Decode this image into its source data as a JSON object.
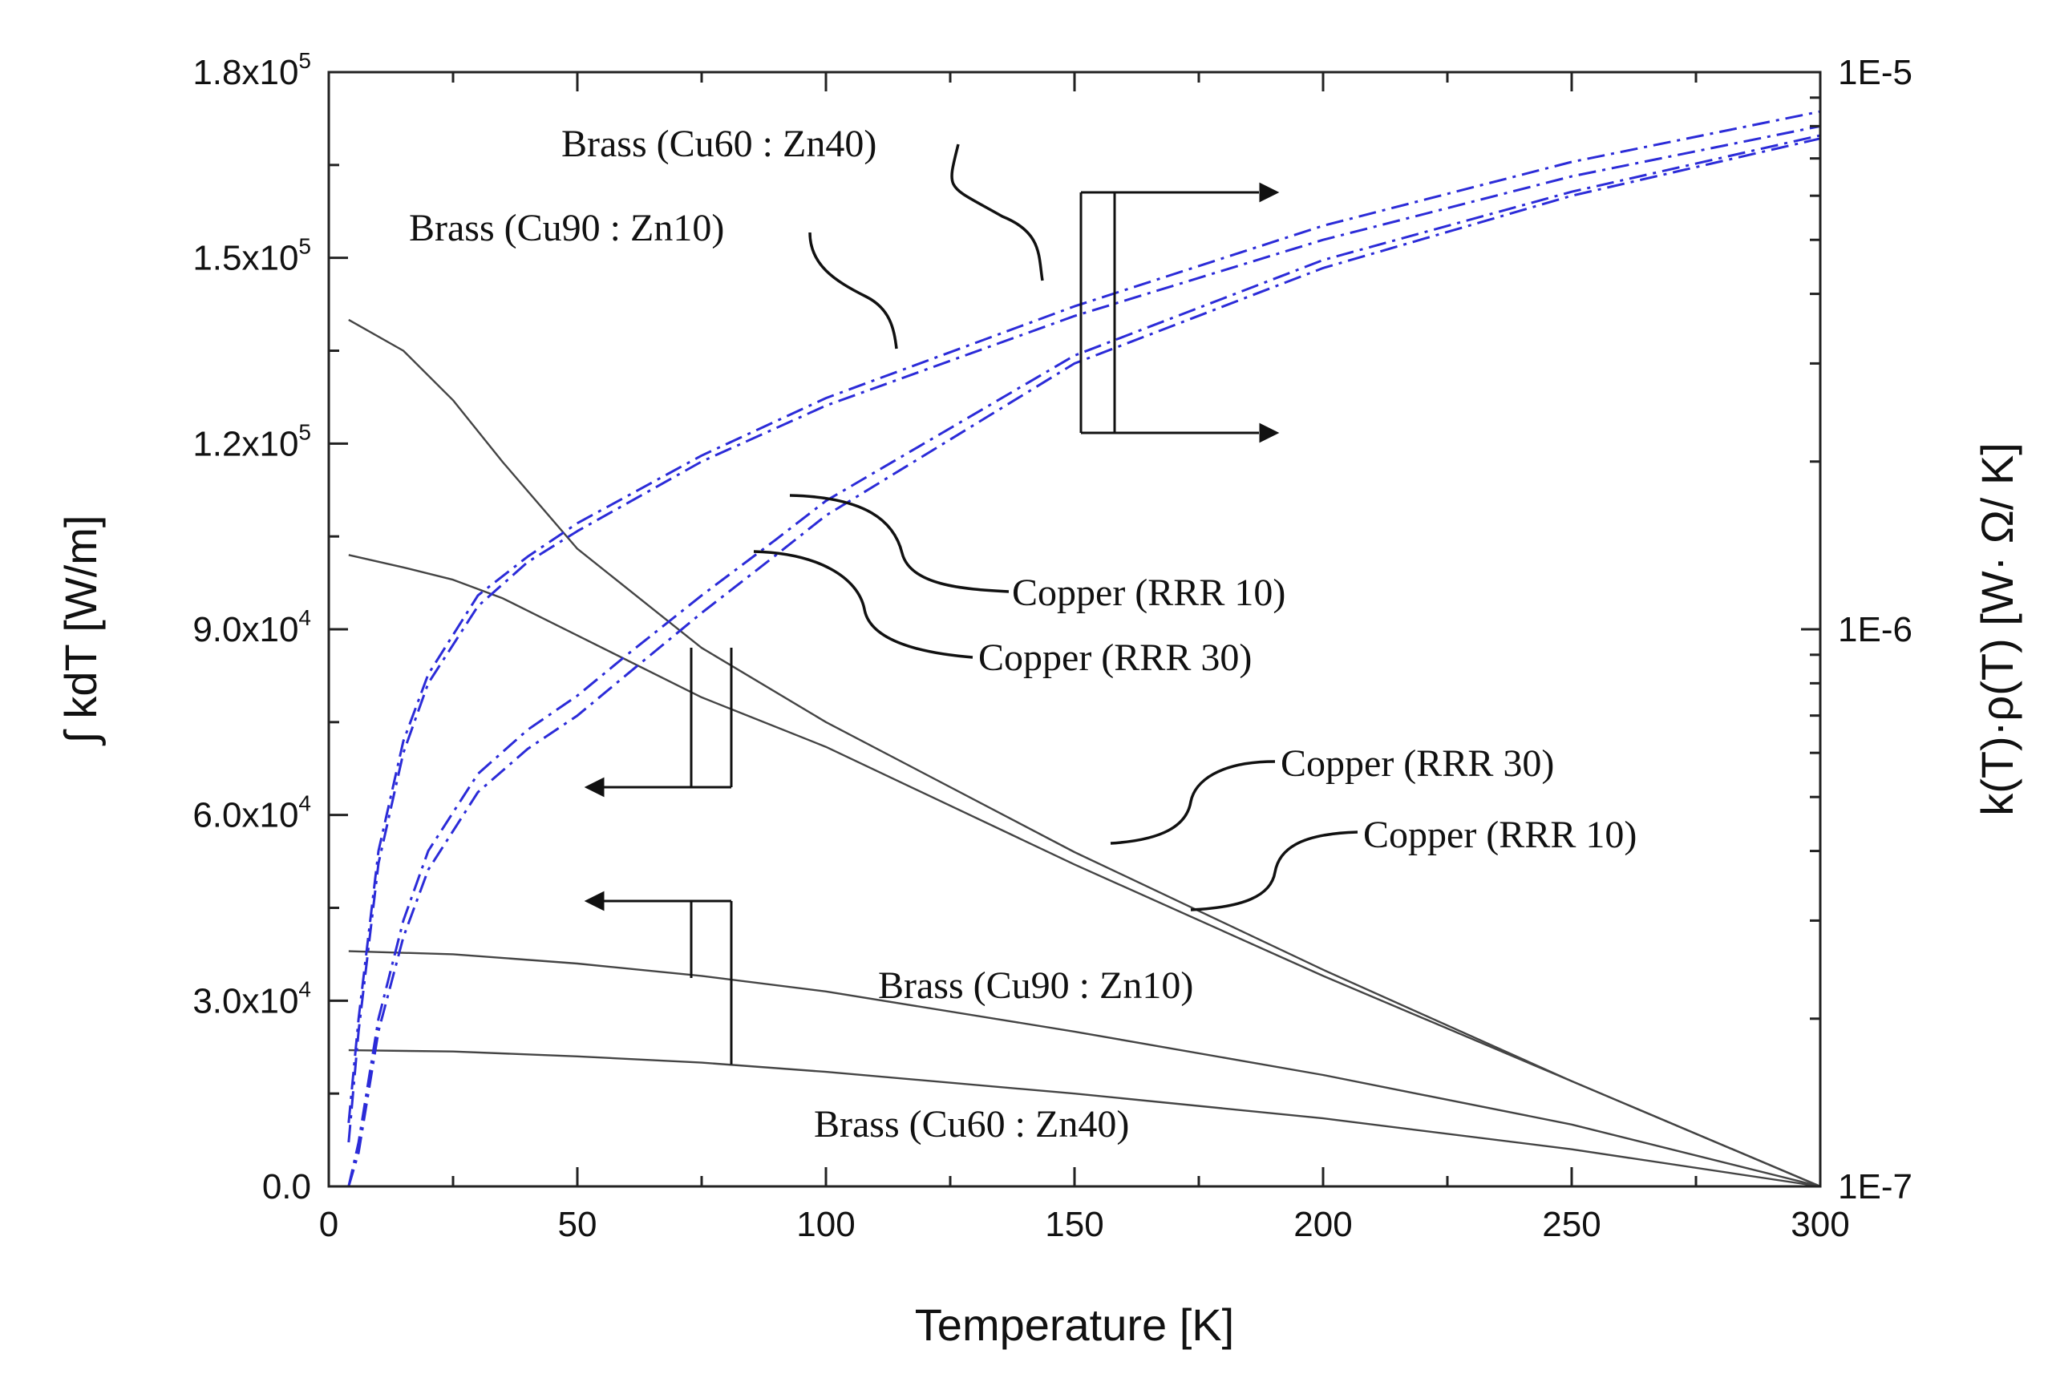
{
  "chart_data": {
    "type": "line",
    "xlabel": "Temperature [K]",
    "ylabel_left": "∫ kdT [W/m]",
    "ylabel_right": "k(T)·ρ(T) [W· Ω/ K]",
    "xlim": [
      0,
      300
    ],
    "ylim_left": [
      0,
      180000
    ],
    "ylim_right": [
      1e-07,
      1e-05
    ],
    "right_scale": "log",
    "x_ticks": [
      0,
      50,
      100,
      150,
      200,
      250,
      300
    ],
    "y_left_ticks": [
      {
        "value": 0,
        "label": "0.0"
      },
      {
        "value": 30000,
        "mant": "3.0x10",
        "exp": "4"
      },
      {
        "value": 60000,
        "mant": "6.0x10",
        "exp": "4"
      },
      {
        "value": 90000,
        "mant": "9.0x10",
        "exp": "4"
      },
      {
        "value": 120000,
        "mant": "1.2x10",
        "exp": "5"
      },
      {
        "value": 150000,
        "mant": "1.5x10",
        "exp": "5"
      },
      {
        "value": 180000,
        "mant": "1.8x10",
        "exp": "5"
      }
    ],
    "y_right_ticks": [
      {
        "value": 1e-07,
        "label": "1E-7"
      },
      {
        "value": 1e-06,
        "label": "1E-6"
      },
      {
        "value": 1e-05,
        "label": "1E-5"
      }
    ],
    "series": [
      {
        "axis": "left",
        "color": "#444444",
        "style": "solid",
        "x": [
          4,
          15,
          25,
          35,
          50,
          75,
          100,
          150,
          200,
          250,
          300
        ],
        "y": [
          140000,
          135000,
          127000,
          117000,
          103000,
          87000,
          75000,
          54000,
          35000,
          17000,
          0
        ]
      },
      {
        "axis": "left",
        "color": "#444444",
        "style": "solid",
        "x": [
          4,
          15,
          25,
          35,
          50,
          75,
          100,
          150,
          200,
          250,
          300
        ],
        "y": [
          102000,
          100000,
          98000,
          95000,
          89000,
          79000,
          71000,
          52000,
          34000,
          17000,
          0
        ]
      },
      {
        "axis": "left",
        "color": "#444444",
        "style": "solid",
        "x": [
          4,
          25,
          50,
          75,
          100,
          150,
          200,
          250,
          300
        ],
        "y": [
          38000,
          37500,
          36000,
          34000,
          31500,
          25000,
          18000,
          10000,
          0
        ]
      },
      {
        "axis": "left",
        "color": "#444444",
        "style": "solid",
        "x": [
          4,
          25,
          50,
          75,
          100,
          150,
          200,
          250,
          300
        ],
        "y": [
          22000,
          21800,
          21000,
          20000,
          18500,
          15000,
          11000,
          6000,
          0
        ]
      },
      {
        "axis": "right",
        "color": "#2b2bd8",
        "style": "dashdot",
        "x": [
          4,
          6,
          10,
          15,
          20,
          30,
          40,
          50,
          75,
          100,
          150,
          200,
          250,
          300
        ],
        "y": [
          1.3e-07,
          2e-07,
          4e-07,
          6.3e-07,
          8.3e-07,
          1.15e-06,
          1.35e-06,
          1.55e-06,
          2.05e-06,
          2.6e-06,
          3.8e-06,
          5.3e-06,
          6.9e-06,
          8.5e-06
        ]
      },
      {
        "axis": "right",
        "color": "#2b2bd8",
        "style": "dashdot",
        "x": [
          4,
          6,
          10,
          15,
          20,
          30,
          40,
          50,
          75,
          100,
          150,
          200,
          250,
          300
        ],
        "y": [
          1.2e-07,
          1.9e-07,
          3.8e-07,
          6e-07,
          8e-07,
          1.1e-06,
          1.32e-06,
          1.5e-06,
          2e-06,
          2.52e-06,
          3.65e-06,
          5e-06,
          6.5e-06,
          8e-06
        ]
      },
      {
        "axis": "right",
        "color": "#2b2bd8",
        "style": "dashdot",
        "x": [
          4,
          6,
          10,
          15,
          20,
          30,
          40,
          50,
          60,
          75,
          90,
          100,
          150,
          200,
          250,
          300
        ],
        "y": [
          1e-07,
          1.2e-07,
          2e-07,
          3e-07,
          4e-07,
          5.5e-07,
          6.6e-07,
          7.6e-07,
          9e-07,
          1.15e-06,
          1.45e-06,
          1.7e-06,
          3.1e-06,
          4.6e-06,
          6.1e-06,
          7.7e-06
        ]
      },
      {
        "axis": "right",
        "color": "#2b2bd8",
        "style": "dashdot",
        "x": [
          4,
          6,
          10,
          15,
          20,
          30,
          40,
          50,
          60,
          75,
          90,
          100,
          150,
          200,
          250,
          300
        ],
        "y": [
          1e-07,
          1.15e-07,
          1.9e-07,
          2.8e-07,
          3.7e-07,
          5.1e-07,
          6.1e-07,
          7e-07,
          8.3e-07,
          1.07e-06,
          1.36e-06,
          1.6e-06,
          3e-06,
          4.45e-06,
          6e-06,
          7.6e-06
        ]
      }
    ],
    "annotations": [
      {
        "text": "Brass (Cu60 : Zn40)"
      },
      {
        "text": "Brass (Cu90 : Zn10)"
      },
      {
        "text": "Copper (RRR 10)"
      },
      {
        "text": "Copper (RRR 30)"
      },
      {
        "text": "Copper (RRR 30)"
      },
      {
        "text": "Copper (RRR 10)"
      },
      {
        "text": "Brass (Cu90 : Zn10)"
      },
      {
        "text": "Brass (Cu60 : Zn40)"
      }
    ]
  }
}
